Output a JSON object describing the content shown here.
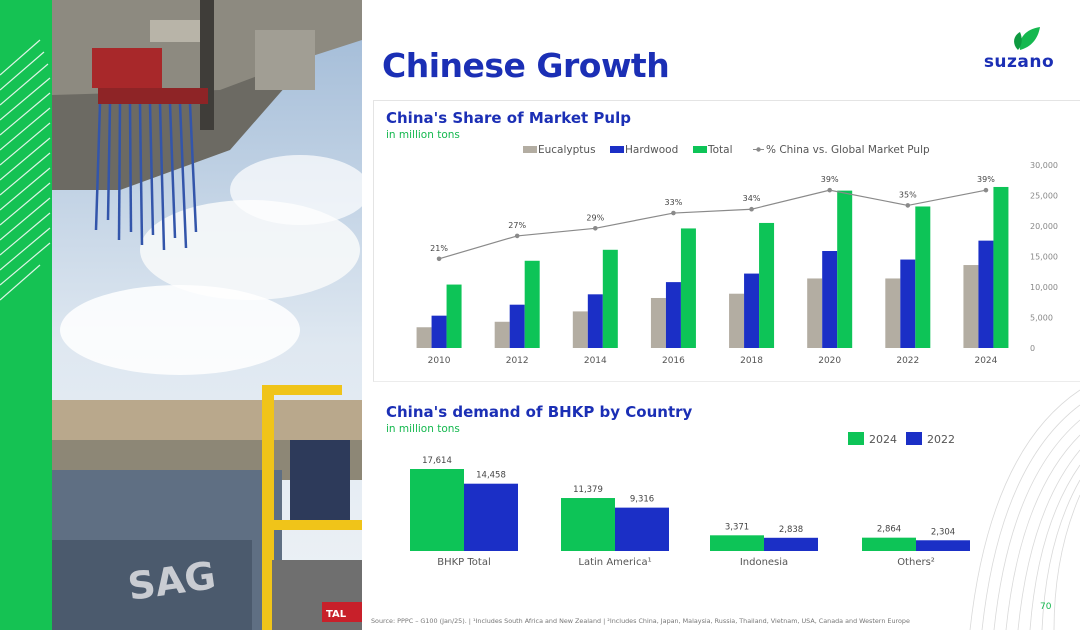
{
  "slide": {
    "title": "Chinese Growth",
    "logo_text": "suzano",
    "page_number": "70",
    "source": "Source: PPPC – G100 (Jan/25). | ¹Includes South Africa and New Zealand | ²Includes China, Japan, Malaysia, Russia, Thailand, Vietnam, USA, Canada and Western Europe"
  },
  "colors": {
    "brand_blue": "#1b2fb5",
    "brand_green": "#15b84f",
    "eucalyptus": "#b3ada2",
    "hardwood": "#1b2fc6",
    "total": "#0dc457",
    "line": "#8a8a8a"
  },
  "photo": {
    "icon": "port-crane-photo"
  },
  "chart_data": [
    {
      "type": "bar",
      "title": "China's Share of Market Pulp",
      "subtitle": "in million tons",
      "categories": [
        "2010",
        "2012",
        "2014",
        "2016",
        "2018",
        "2020",
        "2022",
        "2024"
      ],
      "series": [
        {
          "name": "Eucalyptus",
          "values": [
            3400,
            4300,
            6000,
            8200,
            8900,
            11400,
            11400,
            13600
          ]
        },
        {
          "name": "Hardwood",
          "values": [
            5300,
            7100,
            8800,
            10800,
            12200,
            15900,
            14500,
            17600
          ]
        },
        {
          "name": "Total",
          "values": [
            10400,
            14300,
            16100,
            19600,
            20500,
            25800,
            23200,
            26400
          ]
        }
      ],
      "line_series": {
        "name": "% China vs. Global Market Pulp",
        "values": [
          21,
          27,
          29,
          33,
          34,
          39,
          35,
          39
        ],
        "labels": [
          "21%",
          "27%",
          "29%",
          "33%",
          "34%",
          "39%",
          "35%",
          "39%"
        ]
      },
      "ylim": [
        0,
        30000
      ],
      "yticks": [
        "0",
        "5,000",
        "10,000",
        "15,000",
        "20,000",
        "25,000",
        "30,000"
      ],
      "legend_position": "top"
    },
    {
      "type": "bar",
      "title": "China's demand of BHKP by Country",
      "subtitle": "in million tons",
      "categories": [
        "BHKP Total",
        "Latin America¹",
        "Indonesia",
        "Others²"
      ],
      "series": [
        {
          "name": "2024",
          "values": [
            17614,
            11379,
            3371,
            2864
          ],
          "labels": [
            "17,614",
            "11,379",
            "3,371",
            "2,864"
          ]
        },
        {
          "name": "2022",
          "values": [
            14458,
            9316,
            2838,
            2304
          ],
          "labels": [
            "14,458",
            "9,316",
            "2,838",
            "2,304"
          ]
        }
      ],
      "ylim": [
        0,
        17614
      ],
      "legend_position": "top-right"
    }
  ]
}
